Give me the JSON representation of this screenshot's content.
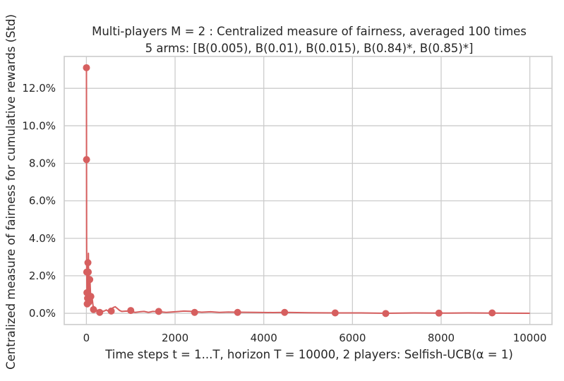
{
  "chart_data": {
    "type": "line",
    "title_line1": "Multi-players M = 2 : Centralized measure of fairness, averaged 100 times",
    "title_line2": "5 arms: [B(0.005), B(0.01), B(0.015), B(0.84)*, B(0.85)*]",
    "xlabel": "Time steps t = 1...T, horizon T = 10000, 2 players: Selfish-UCB(α = 1)",
    "ylabel": "Centralized measure of fairness for cumulative rewards (Std)",
    "xlim": [
      -500,
      10500
    ],
    "ylim": [
      -0.6,
      13.7
    ],
    "xticks": [
      0,
      2000,
      4000,
      6000,
      8000,
      10000
    ],
    "xtick_labels": [
      "0",
      "2000",
      "4000",
      "6000",
      "8000",
      "10000"
    ],
    "yticks": [
      0,
      2,
      4,
      6,
      8,
      10,
      12
    ],
    "ytick_labels": [
      "0.0%",
      "2.0%",
      "4.0%",
      "6.0%",
      "8.0%",
      "10.0%",
      "12.0%"
    ],
    "grid": true,
    "line_color": "#d65f5f",
    "series": [
      {
        "line": [
          [
            1,
            13.1
          ],
          [
            3,
            8.2
          ],
          [
            5,
            4.0
          ],
          [
            8,
            2.2
          ],
          [
            12,
            1.1
          ],
          [
            16,
            0.6
          ],
          [
            20,
            1.4
          ],
          [
            26,
            0.9
          ],
          [
            30,
            2.7
          ],
          [
            38,
            1.5
          ],
          [
            45,
            3.2
          ],
          [
            52,
            1.0
          ],
          [
            60,
            2.2
          ],
          [
            70,
            0.7
          ],
          [
            80,
            1.8
          ],
          [
            95,
            0.9
          ],
          [
            110,
            0.6
          ],
          [
            130,
            0.8
          ],
          [
            150,
            0.4
          ],
          [
            180,
            0.3
          ],
          [
            210,
            0.2
          ],
          [
            250,
            0.15
          ],
          [
            300,
            0.05
          ],
          [
            350,
            0.1
          ],
          [
            400,
            0.12
          ],
          [
            450,
            0.18
          ],
          [
            500,
            0.1
          ],
          [
            550,
            0.15
          ],
          [
            600,
            0.3
          ],
          [
            650,
            0.35
          ],
          [
            700,
            0.25
          ],
          [
            750,
            0.15
          ],
          [
            800,
            0.1
          ],
          [
            900,
            0.12
          ],
          [
            1000,
            0.1
          ],
          [
            1100,
            0.05
          ],
          [
            1200,
            0.08
          ],
          [
            1300,
            0.1
          ],
          [
            1400,
            0.05
          ],
          [
            1500,
            0.1
          ],
          [
            1650,
            0.08
          ],
          [
            1800,
            0.05
          ],
          [
            2000,
            0.08
          ],
          [
            2200,
            0.12
          ],
          [
            2400,
            0.1
          ],
          [
            2600,
            0.06
          ],
          [
            2800,
            0.08
          ],
          [
            3000,
            0.05
          ],
          [
            3200,
            0.07
          ],
          [
            3400,
            0.06
          ],
          [
            3800,
            0.05
          ],
          [
            4200,
            0.04
          ],
          [
            4500,
            0.05
          ],
          [
            5000,
            0.03
          ],
          [
            5600,
            0.02
          ],
          [
            6200,
            0.02
          ],
          [
            6750,
            0.0
          ],
          [
            7400,
            0.02
          ],
          [
            8000,
            0.01
          ],
          [
            8600,
            0.02
          ],
          [
            9200,
            0.01
          ],
          [
            10000,
            0.0
          ]
        ],
        "markers": [
          [
            1,
            13.1
          ],
          [
            3,
            8.2
          ],
          [
            8,
            2.2
          ],
          [
            12,
            1.1
          ],
          [
            18,
            0.5
          ],
          [
            26,
            0.8
          ],
          [
            34,
            2.7
          ],
          [
            42,
            2.2
          ],
          [
            55,
            0.6
          ],
          [
            75,
            1.8
          ],
          [
            100,
            0.9
          ],
          [
            160,
            0.2
          ],
          [
            300,
            0.05
          ],
          [
            560,
            0.12
          ],
          [
            1000,
            0.15
          ],
          [
            1630,
            0.1
          ],
          [
            2440,
            0.05
          ],
          [
            3410,
            0.05
          ],
          [
            4470,
            0.05
          ],
          [
            5610,
            0.02
          ],
          [
            6750,
            -0.01
          ],
          [
            7950,
            0.01
          ],
          [
            9150,
            0.02
          ]
        ]
      }
    ]
  }
}
